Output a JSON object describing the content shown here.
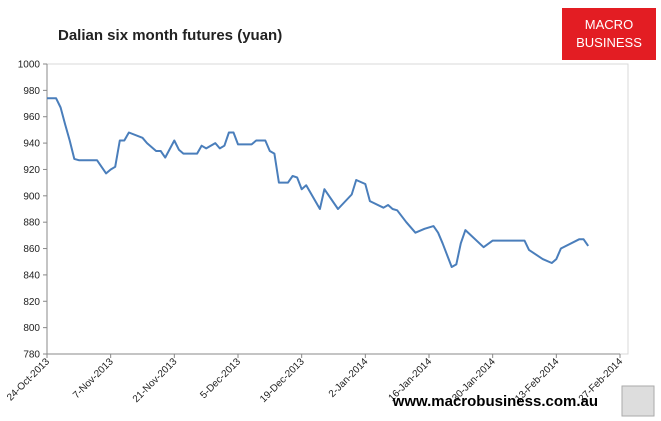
{
  "chart_data": {
    "type": "line",
    "title": "Dalian six month futures (yuan)",
    "x": [
      "2013-10-24",
      "2013-10-26",
      "2013-10-27",
      "2013-10-28",
      "2013-10-29",
      "2013-10-30",
      "2013-10-31",
      "2013-11-04",
      "2013-11-06",
      "2013-11-07",
      "2013-11-08",
      "2013-11-09",
      "2013-11-10",
      "2013-11-11",
      "2013-11-14",
      "2013-11-15",
      "2013-11-17",
      "2013-11-18",
      "2013-11-19",
      "2013-11-21",
      "2013-11-22",
      "2013-11-23",
      "2013-11-26",
      "2013-11-27",
      "2013-11-28",
      "2013-11-30",
      "2013-12-01",
      "2013-12-02",
      "2013-12-03",
      "2013-12-04",
      "2013-12-05",
      "2013-12-08",
      "2013-12-09",
      "2013-12-11",
      "2013-12-12",
      "2013-12-13",
      "2013-12-14",
      "2013-12-16",
      "2013-12-17",
      "2013-12-18",
      "2013-12-19",
      "2013-12-20",
      "2013-12-23",
      "2013-12-24",
      "2013-12-27",
      "2013-12-30",
      "2013-12-31",
      "2014-01-02",
      "2014-01-03",
      "2014-01-06",
      "2014-01-07",
      "2014-01-08",
      "2014-01-09",
      "2014-01-11",
      "2014-01-13",
      "2014-01-15",
      "2014-01-17",
      "2014-01-18",
      "2014-01-19",
      "2014-01-21",
      "2014-01-22",
      "2014-01-23",
      "2014-01-24",
      "2014-01-28",
      "2014-01-30",
      "2014-02-06",
      "2014-02-07",
      "2014-02-10",
      "2014-02-12",
      "2014-02-13",
      "2014-02-14",
      "2014-02-18",
      "2014-02-19",
      "2014-02-20"
    ],
    "series": [
      {
        "name": "Dalian six month futures",
        "color": "#4a7ebb",
        "values": [
          974,
          974,
          967,
          954,
          942,
          928,
          927,
          927,
          917,
          920,
          922,
          942,
          942,
          948,
          944,
          940,
          934,
          934,
          929,
          942,
          935,
          932,
          932,
          938,
          936,
          940,
          936,
          938,
          948,
          948,
          939,
          939,
          942,
          942,
          934,
          932,
          910,
          910,
          915,
          914,
          905,
          908,
          890,
          905,
          890,
          901,
          912,
          909,
          896,
          891,
          893,
          890,
          889,
          880,
          872,
          875,
          877,
          872,
          864,
          846,
          848,
          864,
          874,
          861,
          866,
          866,
          859,
          852,
          849,
          852,
          860,
          867,
          867,
          862
        ]
      }
    ],
    "xlim": [
      "2013-10-24",
      "2014-02-27"
    ],
    "xticks": [
      {
        "value": "2013-10-24",
        "label": "24-Oct-2013"
      },
      {
        "value": "2013-11-07",
        "label": "7-Nov-2013"
      },
      {
        "value": "2013-11-21",
        "label": "21-Nov-2013"
      },
      {
        "value": "2013-12-05",
        "label": "5-Dec-2013"
      },
      {
        "value": "2013-12-19",
        "label": "19-Dec-2013"
      },
      {
        "value": "2014-01-02",
        "label": "2-Jan-2014"
      },
      {
        "value": "2014-01-16",
        "label": "16-Jan-2014"
      },
      {
        "value": "2014-01-30",
        "label": "30-Jan-2014"
      },
      {
        "value": "2014-02-13",
        "label": "13-Feb-2014"
      },
      {
        "value": "2014-02-27",
        "label": "27-Feb-2014"
      }
    ],
    "ylim": [
      780,
      1000
    ],
    "yticks": [
      780,
      800,
      820,
      840,
      860,
      880,
      900,
      920,
      940,
      960,
      980,
      1000
    ],
    "grid": false
  },
  "logo": {
    "line1": "MACRO",
    "line2": "BUSINESS"
  },
  "watermark": "www.macrobusiness.com.au"
}
